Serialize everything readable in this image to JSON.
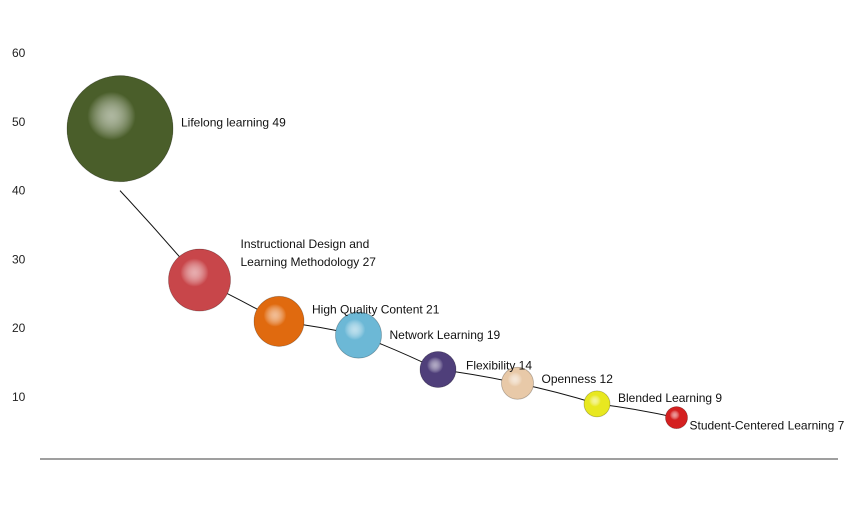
{
  "chart_data": {
    "type": "bubble",
    "title": "",
    "xlabel": "",
    "ylabel": "",
    "ylim": [
      0,
      60
    ],
    "yticks": [
      "60",
      "50",
      "40",
      "30",
      "20",
      "10"
    ],
    "grid": false,
    "legend": "none",
    "trendline": "curve",
    "bubbles": [
      {
        "index": 1,
        "label_lines": [
          "Lifelong learning  49"
        ],
        "value": 49,
        "color": "#4a5e2a"
      },
      {
        "index": 2,
        "label_lines": [
          "Instructional Design and",
          "Learning Methodology  27"
        ],
        "value": 27,
        "color": "#c8464a"
      },
      {
        "index": 3,
        "label_lines": [
          "High Quality Content  21"
        ],
        "value": 21,
        "color": "#e06a0f"
      },
      {
        "index": 4,
        "label_lines": [
          "Network Learning  19"
        ],
        "value": 19,
        "color": "#6cb8d6"
      },
      {
        "index": 5,
        "label_lines": [
          "Flexibility 14"
        ],
        "value": 14,
        "color": "#4f3f7a"
      },
      {
        "index": 6,
        "label_lines": [
          "Openness 12"
        ],
        "value": 12,
        "color": "#e8c9a8"
      },
      {
        "index": 7,
        "label_lines": [
          "Blended Learning 9"
        ],
        "value": 9,
        "color": "#e8e820"
      },
      {
        "index": 8,
        "label_lines": [
          "Student-Centered Learning 7"
        ],
        "value": 7,
        "color": "#d42020"
      }
    ]
  }
}
